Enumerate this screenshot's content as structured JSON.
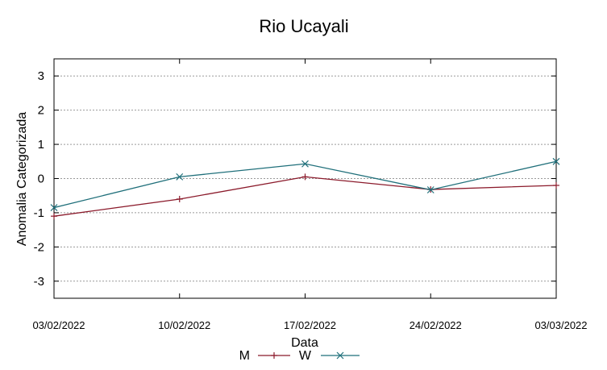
{
  "chart_data": {
    "type": "line",
    "title": "Rio Ucayali",
    "xlabel": "Data",
    "ylabel": "Anomalia Categorizada",
    "categories": [
      "03/02/2022",
      "10/02/2022",
      "17/02/2022",
      "24/02/2022",
      "03/03/2022"
    ],
    "ylim": [
      -3.5,
      3.5
    ],
    "yticks": [
      "3",
      "2",
      "1",
      "0",
      "-1",
      "-2",
      "-3"
    ],
    "ytick_values": [
      3,
      2,
      1,
      0,
      -1,
      -2,
      -3
    ],
    "grid": "horizontal dotted",
    "legend_position": "bottom",
    "series": [
      {
        "name": "M",
        "color": "#8b1a2b",
        "marker": "plus",
        "values": [
          -1.1,
          -0.6,
          0.05,
          -0.32,
          -0.2
        ]
      },
      {
        "name": "W",
        "color": "#1f6f7a",
        "marker": "x",
        "values": [
          -0.85,
          0.05,
          0.43,
          -0.33,
          0.5
        ]
      }
    ]
  }
}
